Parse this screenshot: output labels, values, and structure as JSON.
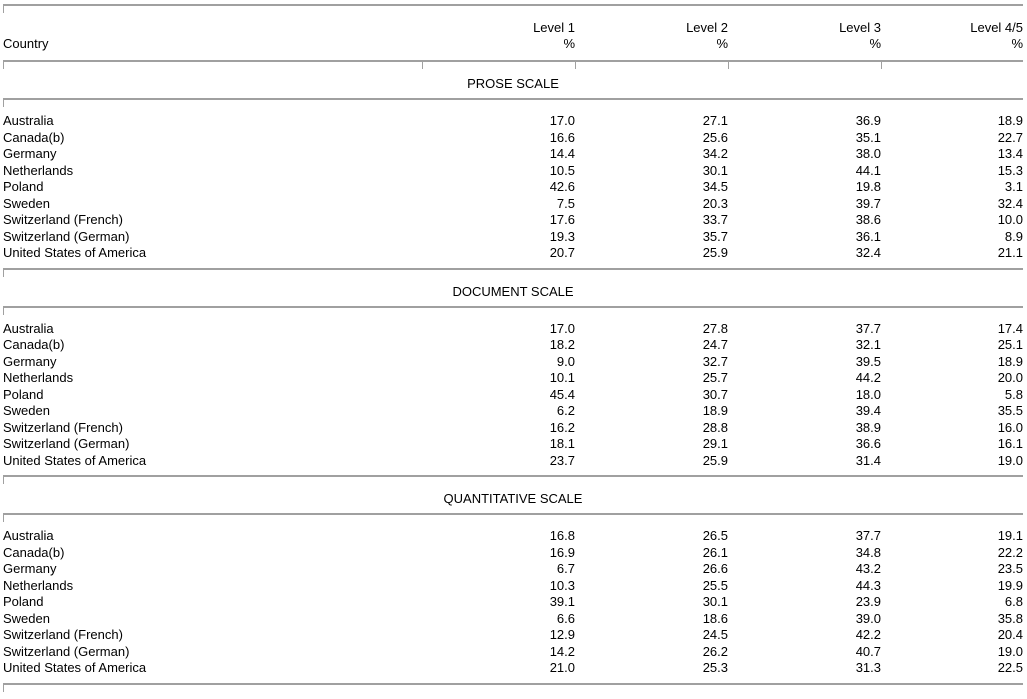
{
  "header": {
    "country": "Country",
    "columns": [
      {
        "label": "Level 1",
        "unit": "%"
      },
      {
        "label": "Level 2",
        "unit": "%"
      },
      {
        "label": "Level 3",
        "unit": "%"
      },
      {
        "label": "Level 4/5",
        "unit": "%"
      }
    ]
  },
  "sections": [
    {
      "title": "PROSE SCALE",
      "rows": [
        [
          "Australia",
          "17.0",
          "27.1",
          "36.9",
          "18.9"
        ],
        [
          "Canada(b)",
          "16.6",
          "25.6",
          "35.1",
          "22.7"
        ],
        [
          "Germany",
          "14.4",
          "34.2",
          "38.0",
          "13.4"
        ],
        [
          "Netherlands",
          "10.5",
          "30.1",
          "44.1",
          "15.3"
        ],
        [
          "Poland",
          "42.6",
          "34.5",
          "19.8",
          "3.1"
        ],
        [
          "Sweden",
          "7.5",
          "20.3",
          "39.7",
          "32.4"
        ],
        [
          "Switzerland (French)",
          "17.6",
          "33.7",
          "38.6",
          "10.0"
        ],
        [
          "Switzerland (German)",
          "19.3",
          "35.7",
          "36.1",
          "8.9"
        ],
        [
          "United States of America",
          "20.7",
          "25.9",
          "32.4",
          "21.1"
        ]
      ]
    },
    {
      "title": "DOCUMENT SCALE",
      "rows": [
        [
          "Australia",
          "17.0",
          "27.8",
          "37.7",
          "17.4"
        ],
        [
          "Canada(b)",
          "18.2",
          "24.7",
          "32.1",
          "25.1"
        ],
        [
          "Germany",
          "9.0",
          "32.7",
          "39.5",
          "18.9"
        ],
        [
          "Netherlands",
          "10.1",
          "25.7",
          "44.2",
          "20.0"
        ],
        [
          "Poland",
          "45.4",
          "30.7",
          "18.0",
          "5.8"
        ],
        [
          "Sweden",
          "6.2",
          "18.9",
          "39.4",
          "35.5"
        ],
        [
          "Switzerland (French)",
          "16.2",
          "28.8",
          "38.9",
          "16.0"
        ],
        [
          "Switzerland (German)",
          "18.1",
          "29.1",
          "36.6",
          "16.1"
        ],
        [
          "United States of America",
          "23.7",
          "25.9",
          "31.4",
          "19.0"
        ]
      ]
    },
    {
      "title": "QUANTITATIVE SCALE",
      "rows": [
        [
          "Australia",
          "16.8",
          "26.5",
          "37.7",
          "19.1"
        ],
        [
          "Canada(b)",
          "16.9",
          "26.1",
          "34.8",
          "22.2"
        ],
        [
          "Germany",
          "6.7",
          "26.6",
          "43.2",
          "23.5"
        ],
        [
          "Netherlands",
          "10.3",
          "25.5",
          "44.3",
          "19.9"
        ],
        [
          "Poland",
          "39.1",
          "30.1",
          "23.9",
          "6.8"
        ],
        [
          "Sweden",
          "6.6",
          "18.6",
          "39.0",
          "35.8"
        ],
        [
          "Switzerland (French)",
          "12.9",
          "24.5",
          "42.2",
          "20.4"
        ],
        [
          "Switzerland (German)",
          "14.2",
          "26.2",
          "40.7",
          "19.0"
        ],
        [
          "United States of America",
          "21.0",
          "25.3",
          "31.3",
          "22.5"
        ]
      ]
    }
  ]
}
